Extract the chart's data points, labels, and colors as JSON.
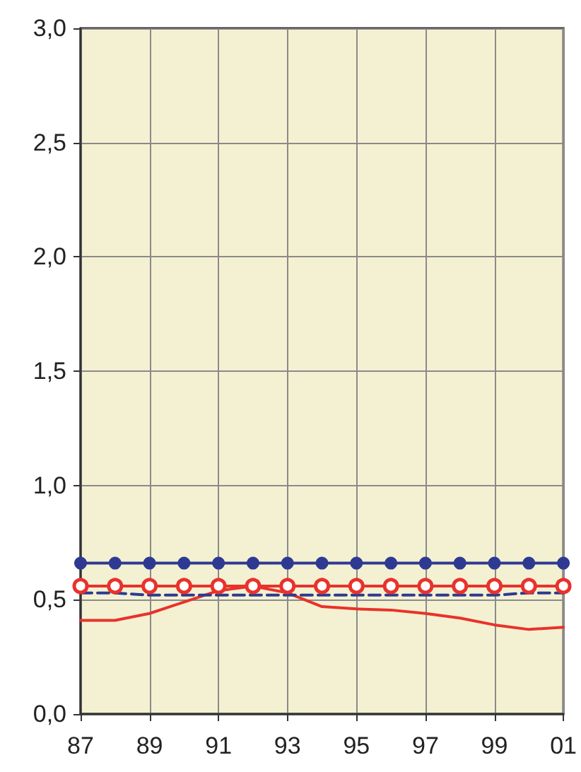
{
  "chart_data": {
    "type": "line",
    "categories": [
      "87",
      null,
      "89",
      null,
      "91",
      null,
      "93",
      null,
      "95",
      null,
      "97",
      null,
      "99",
      null,
      "01"
    ],
    "series": [
      {
        "color": "#2e3a92",
        "marker": "circle",
        "line_style": "solid",
        "values": [
          0.66,
          0.66,
          0.66,
          0.66,
          0.66,
          0.66,
          0.66,
          0.66,
          0.66,
          0.66,
          0.66,
          0.66,
          0.66,
          0.66,
          0.66
        ]
      },
      {
        "color": "#e8322c",
        "marker": "open_circle",
        "line_style": "solid",
        "values": [
          0.56,
          0.56,
          0.56,
          0.56,
          0.56,
          0.56,
          0.56,
          0.56,
          0.56,
          0.56,
          0.56,
          0.56,
          0.56,
          0.56,
          0.56
        ]
      },
      {
        "color": "#2e3a92",
        "marker": "none",
        "line_style": "dashed",
        "values": [
          0.53,
          0.53,
          0.52,
          0.52,
          0.52,
          0.52,
          0.52,
          0.52,
          0.52,
          0.52,
          0.52,
          0.52,
          0.52,
          0.53,
          0.53
        ]
      },
      {
        "color": "#e8322c",
        "marker": "none",
        "line_style": "solid",
        "values": [
          0.41,
          0.41,
          0.44,
          0.49,
          0.54,
          0.56,
          0.53,
          0.47,
          0.46,
          0.455,
          0.44,
          0.42,
          0.39,
          0.37,
          0.38
        ]
      }
    ],
    "ylim": [
      0,
      3
    ],
    "yticks": [
      {
        "value": 0,
        "label": "0,0"
      },
      {
        "value": 0.5,
        "label": "0,5"
      },
      {
        "value": 1,
        "label": "1,0"
      },
      {
        "value": 1.5,
        "label": "1,5"
      },
      {
        "value": 2,
        "label": "2,0"
      },
      {
        "value": 2.5,
        "label": "2,5"
      },
      {
        "value": 3,
        "label": "3,0"
      }
    ],
    "grid": true
  }
}
